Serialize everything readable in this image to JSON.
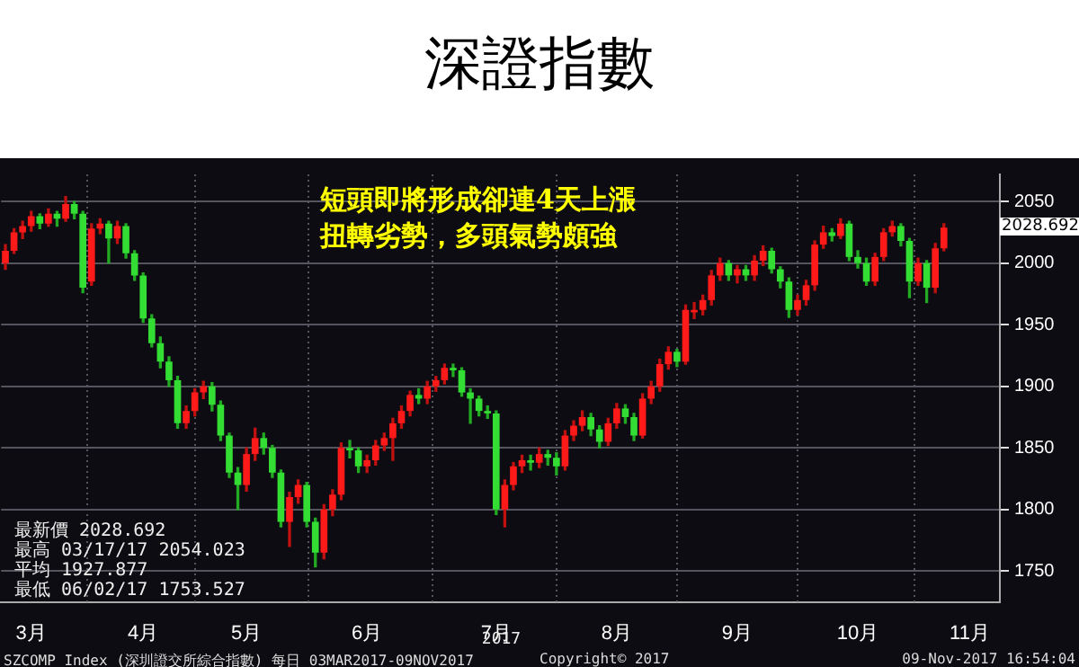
{
  "chart_data": {
    "type": "candlestick",
    "title": "深證指數",
    "categories": [
      null,
      null,
      null,
      "3月",
      null,
      null,
      null,
      null,
      null,
      null,
      null,
      null,
      null,
      null,
      null,
      null,
      "4月",
      null,
      null,
      null,
      null,
      null,
      null,
      null,
      null,
      null,
      null,
      null,
      "5月",
      null,
      null,
      null,
      null,
      null,
      null,
      null,
      null,
      null,
      null,
      null,
      null,
      null,
      "6月",
      null,
      null,
      null,
      null,
      null,
      null,
      null,
      null,
      null,
      null,
      null,
      null,
      null,
      null,
      "7月",
      null,
      null,
      null,
      null,
      null,
      null,
      null,
      null,
      null,
      null,
      null,
      null,
      null,
      "8月",
      null,
      null,
      null,
      null,
      null,
      null,
      null,
      null,
      null,
      null,
      null,
      null,
      null,
      "9月",
      null,
      null,
      null,
      null,
      null,
      null,
      null,
      null,
      null,
      null,
      null,
      null,
      null,
      "10月",
      null,
      null,
      null,
      null,
      null,
      null,
      null,
      null,
      null,
      null,
      null,
      null,
      "11月",
      null,
      null,
      null
    ],
    "ohlc": [
      [
        2000,
        2015,
        1995,
        2010
      ],
      [
        2010,
        2028,
        2008,
        2025
      ],
      [
        2025,
        2034,
        2020,
        2030
      ],
      [
        2030,
        2042,
        2026,
        2038
      ],
      [
        2038,
        2040,
        2028,
        2032
      ],
      [
        2032,
        2044,
        2030,
        2040
      ],
      [
        2040,
        2042,
        2030,
        2036
      ],
      [
        2036,
        2054.023,
        2034,
        2048
      ],
      [
        2048,
        2050,
        2036,
        2040
      ],
      [
        2040,
        2042,
        1976,
        1980
      ],
      [
        1985,
        2032,
        1982,
        2028
      ],
      [
        2028,
        2036,
        2024,
        2032
      ],
      [
        2032,
        2034,
        2000,
        2020
      ],
      [
        2020,
        2034,
        2016,
        2030
      ],
      [
        2030,
        2032,
        2004,
        2008
      ],
      [
        2008,
        2010,
        1986,
        1990
      ],
      [
        1990,
        1992,
        1952,
        1955
      ],
      [
        1955,
        1958,
        1932,
        1935
      ],
      [
        1935,
        1940,
        1915,
        1920
      ],
      [
        1920,
        1924,
        1900,
        1905
      ],
      [
        1905,
        1908,
        1866,
        1870
      ],
      [
        1870,
        1884,
        1866,
        1880
      ],
      [
        1880,
        1898,
        1876,
        1895
      ],
      [
        1895,
        1904,
        1890,
        1900
      ],
      [
        1900,
        1903,
        1880,
        1885
      ],
      [
        1885,
        1888,
        1856,
        1860
      ],
      [
        1860,
        1862,
        1826,
        1830
      ],
      [
        1830,
        1834,
        1800,
        1820
      ],
      [
        1820,
        1850,
        1815,
        1845
      ],
      [
        1845,
        1866,
        1840,
        1858
      ],
      [
        1858,
        1862,
        1845,
        1850
      ],
      [
        1850,
        1852,
        1826,
        1830
      ],
      [
        1830,
        1832,
        1786,
        1790
      ],
      [
        1790,
        1814,
        1770,
        1810
      ],
      [
        1810,
        1824,
        1805,
        1820
      ],
      [
        1820,
        1822,
        1786,
        1790
      ],
      [
        1790,
        1793,
        1753.527,
        1765
      ],
      [
        1765,
        1804,
        1760,
        1800
      ],
      [
        1800,
        1816,
        1795,
        1812
      ],
      [
        1812,
        1854,
        1808,
        1850
      ],
      [
        1850,
        1856,
        1842,
        1848
      ],
      [
        1848,
        1850,
        1830,
        1835
      ],
      [
        1835,
        1844,
        1830,
        1840
      ],
      [
        1840,
        1856,
        1836,
        1852
      ],
      [
        1852,
        1862,
        1848,
        1858
      ],
      [
        1858,
        1874,
        1840,
        1870
      ],
      [
        1870,
        1884,
        1866,
        1880
      ],
      [
        1880,
        1896,
        1876,
        1893
      ],
      [
        1893,
        1898,
        1886,
        1890
      ],
      [
        1890,
        1904,
        1886,
        1900
      ],
      [
        1900,
        1908,
        1896,
        1905
      ],
      [
        1905,
        1918,
        1902,
        1915
      ],
      [
        1915,
        1918,
        1908,
        1913
      ],
      [
        1913,
        1915,
        1892,
        1895
      ],
      [
        1895,
        1898,
        1870,
        1890
      ],
      [
        1890,
        1892,
        1876,
        1880
      ],
      [
        1880,
        1884,
        1874,
        1878
      ],
      [
        1878,
        1880,
        1796,
        1800
      ],
      [
        1800,
        1824,
        1786,
        1820
      ],
      [
        1820,
        1838,
        1816,
        1835
      ],
      [
        1835,
        1844,
        1830,
        1840
      ],
      [
        1840,
        1844,
        1832,
        1838
      ],
      [
        1838,
        1850,
        1834,
        1845
      ],
      [
        1845,
        1848,
        1836,
        1842
      ],
      [
        1842,
        1846,
        1828,
        1835
      ],
      [
        1835,
        1864,
        1832,
        1860
      ],
      [
        1860,
        1872,
        1856,
        1868
      ],
      [
        1868,
        1880,
        1864,
        1875
      ],
      [
        1875,
        1878,
        1860,
        1865
      ],
      [
        1865,
        1868,
        1850,
        1855
      ],
      [
        1855,
        1874,
        1852,
        1870
      ],
      [
        1870,
        1886,
        1866,
        1882
      ],
      [
        1882,
        1885,
        1870,
        1875
      ],
      [
        1875,
        1878,
        1856,
        1860
      ],
      [
        1860,
        1894,
        1858,
        1890
      ],
      [
        1890,
        1904,
        1886,
        1900
      ],
      [
        1900,
        1922,
        1896,
        1918
      ],
      [
        1918,
        1932,
        1914,
        1928
      ],
      [
        1928,
        1930,
        1916,
        1920
      ],
      [
        1920,
        1966,
        1918,
        1962
      ],
      [
        1960,
        1968,
        1955,
        1962
      ],
      [
        1962,
        1974,
        1958,
        1970
      ],
      [
        1970,
        1994,
        1966,
        1990
      ],
      [
        1990,
        2004,
        1986,
        2000
      ],
      [
        2000,
        2002,
        1986,
        1990
      ],
      [
        1990,
        1998,
        1984,
        1995
      ],
      [
        1995,
        1998,
        1986,
        1990
      ],
      [
        1990,
        2006,
        1986,
        2002
      ],
      [
        2002,
        2014,
        1998,
        2010
      ],
      [
        2010,
        2012,
        1992,
        1995
      ],
      [
        1995,
        1997,
        1980,
        1985
      ],
      [
        1985,
        1988,
        1956,
        1962
      ],
      [
        1962,
        1974,
        1958,
        1970
      ],
      [
        1970,
        1986,
        1966,
        1982
      ],
      [
        1982,
        2018,
        1978,
        2015
      ],
      [
        2015,
        2030,
        2012,
        2025
      ],
      [
        2025,
        2028,
        2018,
        2022
      ],
      [
        2022,
        2036,
        2020,
        2032
      ],
      [
        2032,
        2034,
        2002,
        2005
      ],
      [
        2005,
        2010,
        1996,
        2000
      ],
      [
        2000,
        2004,
        1982,
        1985
      ],
      [
        1985,
        2008,
        1982,
        2005
      ],
      [
        2005,
        2028,
        2002,
        2025
      ],
      [
        2025,
        2034,
        2022,
        2030
      ],
      [
        2030,
        2032,
        2014,
        2018
      ],
      [
        2018,
        2020,
        1972,
        1985
      ],
      [
        1985,
        2004,
        1982,
        2000
      ],
      [
        2000,
        2002,
        1968,
        1980
      ],
      [
        1980,
        2016,
        1976,
        2012
      ],
      [
        2012,
        2032,
        2010,
        2028.692
      ],
      null,
      null,
      null,
      null,
      null,
      null
    ],
    "ylim": [
      1725,
      2072
    ],
    "yticks": [
      1750,
      1800,
      1850,
      1900,
      1950,
      2000,
      2050
    ],
    "grid": true,
    "annotations": [
      "短頭即將形成卻連4天上漲",
      "扭轉劣勢，多頭氣勢頗強",
      "最新價 2028.692",
      "最高 03/17/17 2054.023",
      "平均 1927.877",
      "最低 06/02/17 1753.527",
      "2017",
      "SZCOMP Index (深圳證交所綜合指數) 每日 03MAR2017-09NOV2017",
      "Copyright© 2017",
      "09-Nov-2017 16:54:04",
      "2028.692"
    ]
  }
}
